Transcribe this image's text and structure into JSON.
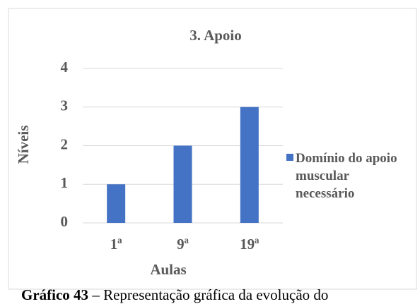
{
  "chart_data": {
    "type": "bar",
    "title": "3. Apoio",
    "categories": [
      "1ª",
      "9ª",
      "19ª"
    ],
    "series": [
      {
        "name": "Domínio do apoio muscular necessário",
        "color": "#4472c4",
        "values": [
          1,
          2,
          3
        ]
      }
    ],
    "ylim": [
      0,
      4
    ],
    "yticks": [
      0,
      1,
      2,
      3,
      4
    ],
    "grid": true,
    "y_label": "Níveis",
    "x_label": "Aulas",
    "legend": "right"
  },
  "caption": {
    "label": "Gráfico 43",
    "text": "– Representação gráfica da evolução do"
  }
}
